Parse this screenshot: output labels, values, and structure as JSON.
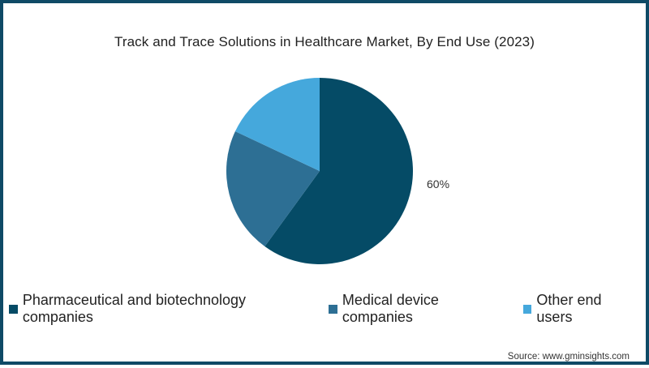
{
  "chart_data": {
    "type": "pie",
    "title": "Track and Trace Solutions in Healthcare Market, By End Use (2023)",
    "categories": [
      "Pharmaceutical and biotechnology companies",
      "Medical device companies",
      "Other end users"
    ],
    "values": [
      60,
      22,
      18
    ],
    "colors": [
      "#054b66",
      "#2d6f94",
      "#45a8dc"
    ],
    "data_labels": [
      {
        "category": "Pharmaceutical and biotechnology companies",
        "label": "60%"
      }
    ],
    "start_angle": "12 o'clock, clockwise",
    "legend_position": "bottom"
  },
  "header": {
    "title": "Track and Trace Solutions in Healthcare Market, By End Use (2023)"
  },
  "labels": {
    "pharma_pct": "60%"
  },
  "legend": {
    "items": [
      {
        "label": "Pharmaceutical and biotechnology companies",
        "color": "#054b66"
      },
      {
        "label": "Medical device companies",
        "color": "#2d6f94"
      },
      {
        "label": "Other end users",
        "color": "#45a8dc"
      }
    ]
  },
  "footer": {
    "source": "Source: www.gminsights.com"
  },
  "colors": {
    "border": "#0f4a66"
  }
}
